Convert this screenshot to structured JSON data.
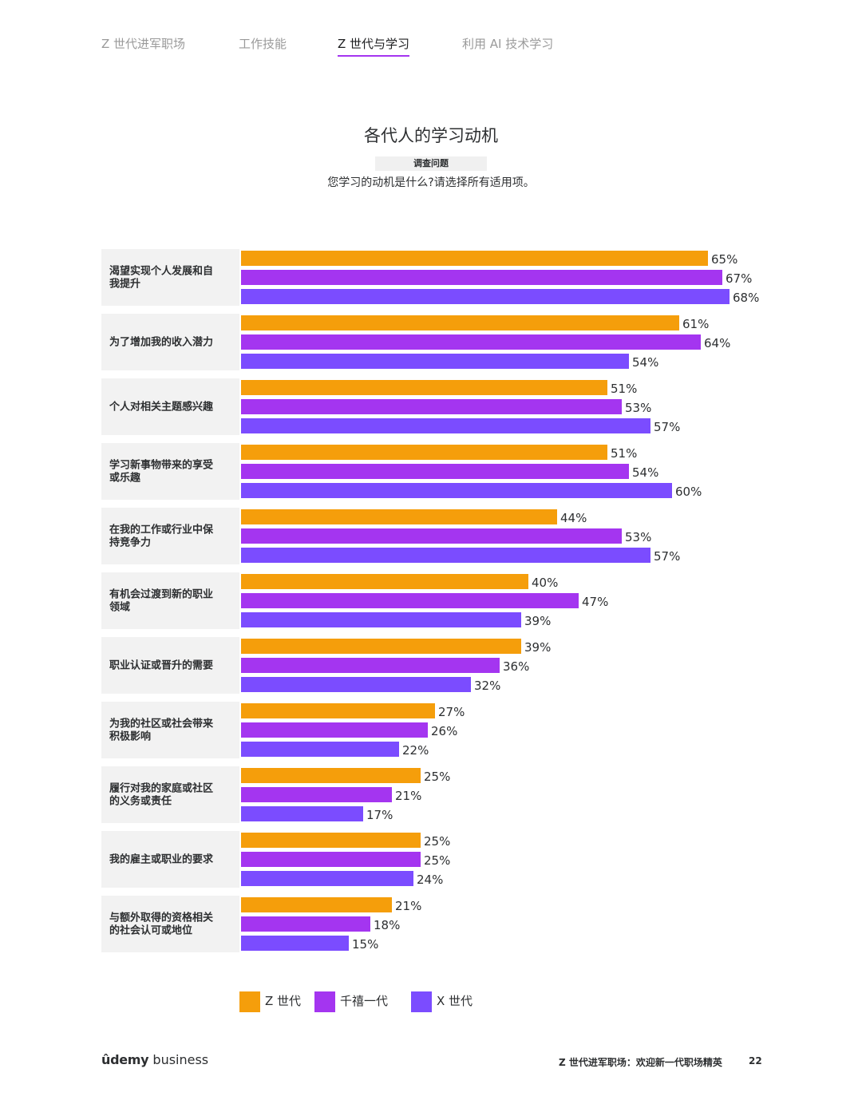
{
  "nav": {
    "tabs": [
      {
        "label": "Z 世代进军职场",
        "active": false
      },
      {
        "label": "工作技能",
        "active": false
      },
      {
        "label": "Z 世代与学习",
        "active": true
      },
      {
        "label": "利用 AI 技术学习",
        "active": false
      }
    ]
  },
  "header": {
    "title": "各代人的学习动机",
    "question_tag": "调查问题",
    "question": "您学习的动机是什么?请选择所有适用项。"
  },
  "chart_data": {
    "type": "bar",
    "orientation": "horizontal",
    "categories": [
      "渴望实现个人发展和自我提升",
      "为了增加我的收入潜力",
      "个人对相关主题感兴趣",
      "学习新事物带来的享受或乐趣",
      "在我的工作或行业中保持竞争力",
      "有机会过渡到新的职业领域",
      "职业认证或晋升的需要",
      "为我的社区或社会带来积极影响",
      "履行对我的家庭或社区的义务或责任",
      "我的雇主或职业的要求",
      "与额外取得的资格相关的社会认可或地位"
    ],
    "series": [
      {
        "name": "Z 世代",
        "color": "#f59e0b",
        "values": [
          65,
          61,
          51,
          51,
          44,
          40,
          39,
          27,
          25,
          25,
          21
        ]
      },
      {
        "name": "千禧一代",
        "color": "#a435f0",
        "values": [
          67,
          64,
          53,
          54,
          53,
          47,
          36,
          26,
          21,
          25,
          18
        ]
      },
      {
        "name": "X 世代",
        "color": "#7b4cff",
        "values": [
          68,
          54,
          57,
          60,
          57,
          39,
          32,
          22,
          17,
          24,
          15
        ]
      }
    ],
    "value_suffix": "%",
    "xlim": [
      0,
      100
    ]
  },
  "footer": {
    "logo_main": "ûdemy",
    "logo_sub": "business",
    "report_title": "Z 世代进军职场：欢迎新一代职场精英",
    "page": "22"
  }
}
